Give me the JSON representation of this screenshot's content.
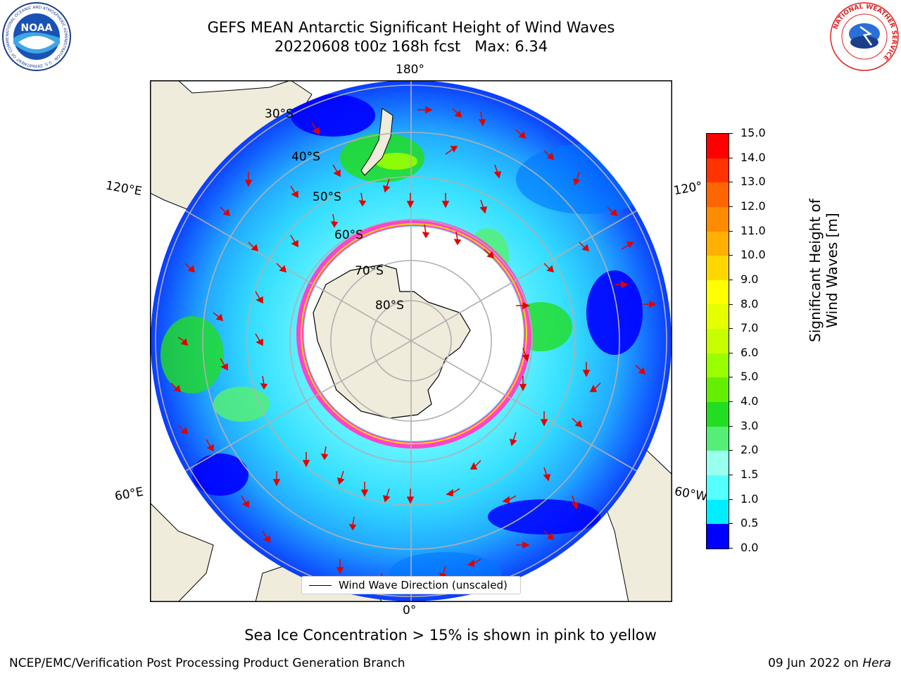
{
  "header": {
    "title_line1": "GEFS MEAN Antarctic Significant Height of Wind Waves",
    "title_line2": "20220608 t00z 168h fcst   Max: 6.34"
  },
  "logos": {
    "left": "NOAA",
    "left_ring": "NATIONAL OCEANIC AND ATMOSPHERIC ADMINISTRATION · U.S. DEPARTMENT OF COMMERCE",
    "right_ring": "NATIONAL WEATHER SERVICE"
  },
  "map": {
    "projection": "south-polar-stereographic",
    "lon_labels": {
      "top": "180°",
      "bottom": "0°",
      "upper_left": "120°E",
      "upper_right": "120°",
      "lower_left": "60°E",
      "lower_right": "60°W"
    },
    "lat_labels": [
      "30°S",
      "40°S",
      "50°S",
      "60°S",
      "70°S",
      "80°S"
    ],
    "legend_label": "Wind Wave Direction (unscaled)"
  },
  "colorbar": {
    "title": "Significant Height of Wind Waves [m]",
    "ticks": [
      "15.0",
      "14.0",
      "13.0",
      "12.0",
      "11.0",
      "10.0",
      "9.0",
      "8.0",
      "7.0",
      "6.0",
      "5.0",
      "4.0",
      "3.0",
      "2.0",
      "1.5",
      "1.0",
      "0.5",
      "0.0"
    ],
    "colors": [
      "#ff0000",
      "#ff3300",
      "#ff6600",
      "#ff8c00",
      "#ffb000",
      "#ffd700",
      "#ffff00",
      "#e6ff00",
      "#c8ff00",
      "#99ff00",
      "#66ee00",
      "#22dd22",
      "#55ee77",
      "#99ffee",
      "#55ffff",
      "#00eeff",
      "#0077ff",
      "#0000ff"
    ]
  },
  "footer": {
    "note": "Sea Ice Concentration > 15% is shown in pink to yellow",
    "left": "NCEP/EMC/Verification Post Processing Product Generation Branch",
    "right_prefix": "09 Jun 2022 on ",
    "right_machine": "Hera"
  }
}
